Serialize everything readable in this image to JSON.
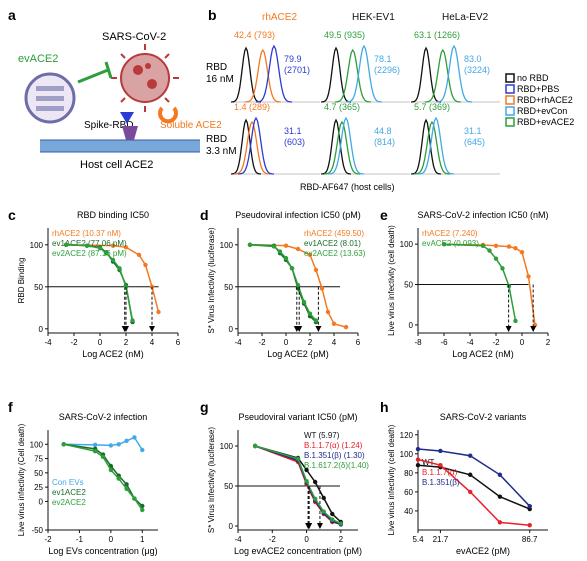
{
  "panel_letters": {
    "a": "a",
    "b": "b",
    "c": "c",
    "d": "d",
    "e": "e",
    "f": "f",
    "g": "g",
    "h": "h"
  },
  "colors": {
    "orange": "#f47920",
    "dkgreen": "#1a6b2a",
    "green": "#2e9e3a",
    "blue": "#2b3bd6",
    "ltblue": "#41a9e8",
    "black": "#111111",
    "red": "#e8202a",
    "navy": "#1f2d8a",
    "virus": "#b83a3a"
  },
  "schematic": {
    "title": "SARS-CoV-2",
    "ev_label": "evACE2",
    "spike_label": "Spike-RBD",
    "soluble_label": "Soluble ACE2",
    "host_label": "Host cell ACE2",
    "icons": [
      "extracellular-vesicle-icon",
      "virus-icon",
      "inhibit-icon",
      "soluble-ace2-icon",
      "membrane-icon",
      "receptor-icon"
    ]
  },
  "flow": {
    "col_headers": [
      "rhACE2",
      "HEK-EV1",
      "HeLa-EV2"
    ],
    "rows": [
      {
        "label": "RBD\n16 nM",
        "stats": [
          {
            "t1": "42.4 (793)",
            "t2": ""
          },
          {
            "t1": "79.9",
            "t2": "(2701)"
          },
          {
            "t1": "49.5 (935)",
            "t2": ""
          },
          {
            "t1": "78.1",
            "t2": "(2296)"
          },
          {
            "t1": "63.1 (1266)",
            "t2": ""
          },
          {
            "t1": "83.0",
            "t2": "(3224)"
          }
        ]
      },
      {
        "label": "RBD\n3.3 nM",
        "stats": [
          {
            "t1": "1.4 (289)",
            "t2": ""
          },
          {
            "t1": "31.1",
            "t2": "(603)"
          },
          {
            "t1": "4.7 (365)",
            "t2": ""
          },
          {
            "t1": "44.8",
            "t2": "(814)"
          },
          {
            "t1": "5.7 (369)",
            "t2": ""
          },
          {
            "t1": "31.1",
            "t2": "(645)"
          }
        ]
      }
    ],
    "xlabel": "RBD-AF647 (host cells)",
    "legend": [
      {
        "label": "no RBD",
        "color": "#111111"
      },
      {
        "label": "RBD+PBS",
        "color": "#2b3bd6"
      },
      {
        "label": "RBD+rhACE2",
        "color": "#f47920"
      },
      {
        "label": "RBD+evCon",
        "color": "#41a9e8"
      },
      {
        "label": "RBD+evACE2",
        "color": "#2e9e3a"
      }
    ]
  },
  "chart_data": [
    {
      "panel": "c",
      "type": "line",
      "title": "RBD binding IC50",
      "xlabel": "Log ACE2 (nM)",
      "ylabel": "RBD Binding",
      "xlim": [
        -4,
        6
      ],
      "ylim": [
        -5,
        120
      ],
      "xticks": [
        "-4",
        "-2",
        "0",
        "2",
        "4",
        "6"
      ],
      "yticks": [
        "0",
        "50",
        "100"
      ],
      "reference_line_y": 50,
      "legend_position": "top-left",
      "series": [
        {
          "name": "rhACE2 (10.37 nM)",
          "color": "#f47920",
          "ic50_log": 4.0,
          "x": [
            -2.6,
            1,
            2,
            3,
            3.5,
            4,
            4.5
          ],
          "y": [
            100,
            99,
            97,
            88,
            76,
            50,
            20
          ]
        },
        {
          "name": "ev1ACE2 (77.06 pM)",
          "color": "#1a6b2a",
          "ic50_log": 1.9,
          "x": [
            -2.6,
            -1,
            0,
            0.5,
            1,
            1.5,
            2,
            2.5
          ],
          "y": [
            100,
            99,
            97,
            91,
            80,
            70,
            52,
            8
          ]
        },
        {
          "name": "ev2ACE2 (87.16 pM)",
          "color": "#2e9e3a",
          "ic50_log": 2.0,
          "x": [
            -2.6,
            -1,
            0,
            0.5,
            1,
            1.5,
            2,
            2.5
          ],
          "y": [
            100,
            99,
            96,
            90,
            82,
            72,
            50,
            10
          ]
        }
      ]
    },
    {
      "panel": "d",
      "type": "line",
      "title": "Pseudoviral infection IC50 (pM)",
      "xlabel": "Log ACE2 (pM)",
      "ylabel": "S* Virus Infectivity (luciferase)",
      "xlim": [
        -4,
        6
      ],
      "ylim": [
        -5,
        120
      ],
      "xticks": [
        "-4",
        "-2",
        "0",
        "2",
        "4",
        "6"
      ],
      "yticks": [
        "0",
        "50",
        "100"
      ],
      "reference_line_y": 50,
      "legend_position": "top-right",
      "series": [
        {
          "name": "rhACE2 (459.50)",
          "color": "#f47920",
          "ic50_log": 2.7,
          "x": [
            -3,
            0,
            1,
            2,
            2.5,
            3,
            3.5,
            4,
            5
          ],
          "y": [
            100,
            99,
            95,
            88,
            70,
            48,
            20,
            6,
            2
          ]
        },
        {
          "name": "ev1ACE2 (8.01)",
          "color": "#1a6b2a",
          "ic50_log": 0.9,
          "x": [
            -3,
            -1,
            -0.5,
            0,
            0.5,
            1,
            1.5,
            2,
            2.5
          ],
          "y": [
            100,
            99,
            90,
            82,
            72,
            48,
            30,
            15,
            8
          ]
        },
        {
          "name": "ev2ACE2 (13.63)",
          "color": "#2e9e3a",
          "ic50_log": 1.1,
          "x": [
            -3,
            -1,
            -0.5,
            0,
            0.5,
            1,
            1.5,
            2,
            2.5
          ],
          "y": [
            100,
            98,
            92,
            84,
            72,
            52,
            32,
            18,
            10
          ]
        }
      ]
    },
    {
      "panel": "e",
      "type": "line",
      "title": "SARS-CoV-2 infection IC50 (nM)",
      "xlabel": "Log ACE2 (nM)",
      "ylabel": "Live virus infectivity (cell death)",
      "xlim": [
        -8,
        2
      ],
      "ylim": [
        -10,
        120
      ],
      "xticks": [
        "-8",
        "-6",
        "-4",
        "-2",
        "0",
        "2"
      ],
      "yticks": [
        "0",
        "50",
        "100"
      ],
      "reference_line_y": 50,
      "legend_position": "top-left",
      "series": [
        {
          "name": "rhACE2 (7.240)",
          "color": "#f47920",
          "ic50_log": 0.86,
          "x": [
            -6,
            -3,
            -2,
            -1,
            -0.5,
            0,
            0.5,
            1
          ],
          "y": [
            100,
            99,
            98,
            97,
            95,
            90,
            60,
            0
          ]
        },
        {
          "name": "evACE2 (0.093)",
          "color": "#2e9e3a",
          "ic50_log": -1.03,
          "x": [
            -6,
            -3,
            -2.5,
            -2,
            -1.5,
            -1,
            -0.5
          ],
          "y": [
            100,
            98,
            92,
            82,
            70,
            48,
            5
          ]
        }
      ]
    },
    {
      "panel": "f",
      "type": "line",
      "title": "SARS-CoV-2 infection",
      "xlabel": "Log EVs concentration (μg)",
      "ylabel": "Live virus infectivity (Cell death)",
      "xlim": [
        -2,
        1.5
      ],
      "ylim": [
        -50,
        125
      ],
      "xticks": [
        "-2",
        "-1",
        "0",
        "1"
      ],
      "yticks": [
        "-50",
        "0",
        "25",
        "50",
        "75",
        "100"
      ],
      "legend_position": "bottom-left",
      "series": [
        {
          "name": "Con EVs",
          "color": "#41a9e8",
          "x": [
            -1.5,
            -0.5,
            0,
            0.25,
            0.5,
            0.75,
            1
          ],
          "y": [
            100,
            99,
            98,
            100,
            106,
            112,
            90
          ]
        },
        {
          "name": "ev1ACE2",
          "color": "#1a6b2a",
          "x": [
            -1.5,
            -0.5,
            -0.25,
            0,
            0.25,
            0.5,
            0.75,
            1
          ],
          "y": [
            100,
            92,
            82,
            62,
            45,
            30,
            5,
            -8
          ]
        },
        {
          "name": "ev2ACE2",
          "color": "#2e9e3a",
          "x": [
            -1.5,
            -0.5,
            -0.25,
            0,
            0.25,
            0.5,
            0.75,
            1
          ],
          "y": [
            100,
            88,
            78,
            55,
            40,
            22,
            5,
            -15
          ]
        }
      ]
    },
    {
      "panel": "g",
      "type": "line",
      "title": "Pseudoviral variant IC50 (pM)",
      "xlabel": "Log evACE2 concentration (pM)",
      "ylabel": "S* Virus Infectivity (luciferase)",
      "xlim": [
        -4,
        3
      ],
      "ylim": [
        -5,
        120
      ],
      "xticks": [
        "-4",
        "-2",
        "0",
        "2"
      ],
      "yticks": [
        "0",
        "50",
        "100"
      ],
      "reference_line_y": 50,
      "legend_position": "top-right",
      "series": [
        {
          "name": "WT (5.97)",
          "color": "#111111",
          "ic50_log": 0.78,
          "x": [
            -3,
            -0.5,
            0,
            0.5,
            1,
            1.5,
            2
          ],
          "y": [
            100,
            85,
            70,
            55,
            35,
            15,
            5
          ]
        },
        {
          "name": "B.1.1.7(α) (1.24)",
          "color": "#e8202a",
          "ic50_log": 0.09,
          "x": [
            -3,
            -0.5,
            0,
            0.5,
            1,
            1.5,
            2
          ],
          "y": [
            100,
            80,
            52,
            30,
            15,
            5,
            2
          ]
        },
        {
          "name": "B.1.351(β) (1.30)",
          "color": "#1f2d8a",
          "ic50_log": 0.11,
          "x": [
            -3,
            -0.5,
            0,
            0.5,
            1,
            1.5,
            2
          ],
          "y": [
            100,
            82,
            54,
            32,
            16,
            6,
            2
          ]
        },
        {
          "name": "B.1.617.2(δ)(1.40)",
          "color": "#2e9e3a",
          "ic50_log": 0.15,
          "x": [
            -3,
            -0.5,
            0,
            0.5,
            1,
            1.5,
            2
          ],
          "y": [
            100,
            84,
            56,
            34,
            18,
            8,
            3
          ]
        }
      ]
    },
    {
      "panel": "h",
      "type": "line",
      "title": "SARS-CoV-2 variants",
      "xlabel": "evACE2 (pM)",
      "ylabel": "Live virus infectivity (cell death)",
      "xlim": [
        5.4,
        100
      ],
      "ylim": [
        20,
        125
      ],
      "xticks": [
        "5.4",
        "21.7",
        "86.7"
      ],
      "yticks": [
        "40",
        "60",
        "80",
        "100",
        "120"
      ],
      "legend_position": "middle-left",
      "series": [
        {
          "name": "WT",
          "color": "#111111",
          "x": [
            5.4,
            21.7,
            43.4,
            65,
            86.7
          ],
          "y": [
            88,
            86,
            78,
            55,
            42
          ]
        },
        {
          "name": "B.1.1.7(α)",
          "color": "#e8202a",
          "x": [
            5.4,
            21.7,
            43.4,
            65,
            86.7
          ],
          "y": [
            94,
            88,
            60,
            28,
            25
          ]
        },
        {
          "name": "B.1.351(β)",
          "color": "#1f2d8a",
          "x": [
            5.4,
            21.7,
            43.4,
            65,
            86.7
          ],
          "y": [
            105,
            103,
            98,
            78,
            45
          ]
        }
      ]
    }
  ]
}
